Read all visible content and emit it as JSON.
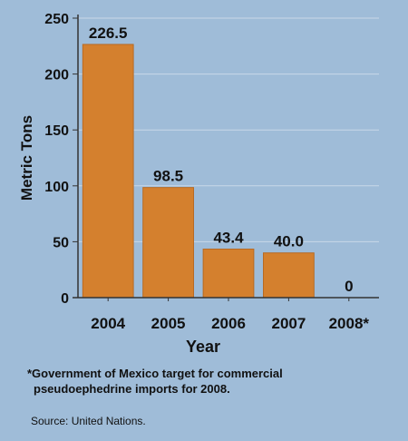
{
  "chart_data": {
    "type": "bar",
    "categories": [
      "2004",
      "2005",
      "2006",
      "2007",
      "2008*"
    ],
    "values": [
      226.5,
      98.5,
      43.4,
      40.0,
      0
    ],
    "data_labels": [
      "226.5",
      "98.5",
      "43.4",
      "40.0",
      "0"
    ],
    "xlabel": "Year",
    "ylabel": "Metric Tons",
    "ylim": [
      0,
      250
    ],
    "yticks": [
      0,
      50,
      100,
      150,
      200,
      250
    ],
    "grid": true,
    "colors": {
      "background": "#9fbcd8",
      "bar": "#d4802e",
      "bar_edge": "#b86a22",
      "grid": "#c8d8e8",
      "axis": "#333333"
    }
  },
  "footnote": {
    "line1": "*Government of Mexico target for commercial",
    "line2": "pseudoephedrine imports for 2008."
  },
  "source": "Source: United Nations."
}
